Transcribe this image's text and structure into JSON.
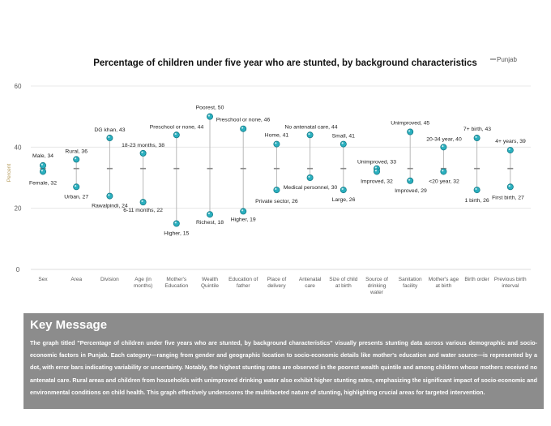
{
  "chart_data": {
    "type": "dot-range",
    "title": "Percentage of children under five year who are stunted, by background characteristics",
    "legend": {
      "label": "Punjab",
      "placement": "top-right"
    },
    "ylabel": "Percent",
    "ylim": [
      0,
      60
    ],
    "yticks": [
      0,
      20,
      40,
      60
    ],
    "grid": true,
    "categories": [
      {
        "name": "Sex",
        "label_lines": [
          "Sex"
        ],
        "punjab": 33,
        "high": {
          "label": "Male, 34",
          "value": 34
        },
        "low": {
          "label": "Female, 32",
          "value": 32
        }
      },
      {
        "name": "Area",
        "label_lines": [
          "Area"
        ],
        "punjab": 33,
        "high": {
          "label": "Rural, 36",
          "value": 36
        },
        "low": {
          "label": "Urban, 27",
          "value": 27
        }
      },
      {
        "name": "Division",
        "label_lines": [
          "Division"
        ],
        "punjab": 33,
        "high": {
          "label": "DG khan, 43",
          "value": 43
        },
        "low": {
          "label": "Rawalpindi, 24",
          "value": 24
        }
      },
      {
        "name": "Age (in months)",
        "label_lines": [
          "Age (in",
          "months)"
        ],
        "punjab": 33,
        "high": {
          "label": "18-23 months, 38",
          "value": 38
        },
        "low": {
          "label": "6-11 months, 22",
          "value": 22
        }
      },
      {
        "name": "Mother's Education",
        "label_lines": [
          "Mother's",
          "Education"
        ],
        "punjab": 33,
        "high": {
          "label": "Preschool or none, 44",
          "value": 44
        },
        "low": {
          "label": "Higher, 15",
          "value": 15
        }
      },
      {
        "name": "Wealth Quintile",
        "label_lines": [
          "Wealth",
          "Quintile"
        ],
        "punjab": 33,
        "high": {
          "label": "Poorest, 50",
          "value": 50
        },
        "low": {
          "label": "Richest, 18",
          "value": 18
        }
      },
      {
        "name": "Education of father",
        "label_lines": [
          "Education of",
          "father"
        ],
        "punjab": 33,
        "high": {
          "label": "Preschool or none, 46",
          "value": 46
        },
        "low": {
          "label": "Higher, 19",
          "value": 19
        }
      },
      {
        "name": "Place of delivery",
        "label_lines": [
          "Place of",
          "delivery"
        ],
        "punjab": 33,
        "high": {
          "label": "Home, 41",
          "value": 41
        },
        "low": {
          "label": "Private sector, 26",
          "value": 26
        }
      },
      {
        "name": "Antenatal care",
        "label_lines": [
          "Antenatal",
          "care"
        ],
        "punjab": 33,
        "high": {
          "label": "No antenatal care, 44",
          "value": 44
        },
        "low": {
          "label": "Medical personnel, 30",
          "value": 30
        }
      },
      {
        "name": "Size of child at birth",
        "label_lines": [
          "Size of child",
          "at birth"
        ],
        "punjab": 33,
        "high": {
          "label": "Small, 41",
          "value": 41
        },
        "low": {
          "label": "Large, 26",
          "value": 26
        }
      },
      {
        "name": "Source of drinking water",
        "label_lines": [
          "Source of",
          "drinking",
          "water"
        ],
        "punjab": 33,
        "high": {
          "label": "Unimproved, 33",
          "value": 33
        },
        "low": {
          "label": "Improved, 32",
          "value": 32
        }
      },
      {
        "name": "Sanitation facility",
        "label_lines": [
          "Sanitation",
          "facility"
        ],
        "punjab": 33,
        "high": {
          "label": "Unimproved, 45",
          "value": 45
        },
        "low": {
          "label": "Improved, 29",
          "value": 29
        }
      },
      {
        "name": "Mother's age at birth",
        "label_lines": [
          "Mother's age",
          "at birth"
        ],
        "punjab": 33,
        "high": {
          "label": "20-34 year, 40",
          "value": 40
        },
        "low": {
          "label": "<20 year, 32",
          "value": 32
        }
      },
      {
        "name": "Birth order",
        "label_lines": [
          "Birth order"
        ],
        "punjab": 33,
        "high": {
          "label": "7+ birth, 43",
          "value": 43
        },
        "low": {
          "label": "1 birth, 26",
          "value": 26
        }
      },
      {
        "name": "Previous birth interval",
        "label_lines": [
          "Previous birth",
          "interval"
        ],
        "punjab": 33,
        "high": {
          "label": "4+ years, 39",
          "value": 39
        },
        "low": {
          "label": "First birth, 27",
          "value": 27
        }
      }
    ],
    "colors": {
      "dot": "#2bb0bf",
      "dot_edge": "#137a87",
      "range_line": "#b9b9b9",
      "grid": "#e3e3e3",
      "axis_text": "#595959",
      "ylabel": "#b59a5a",
      "punjab_marker": "#8a8a8a"
    }
  },
  "key_message": {
    "title": "Key Message",
    "body": "The graph titled \"Percentage of children under five years who are stunted, by background characteristics\" visually presents stunting data across various demographic and socio-economic factors in Punjab. Each category—ranging from gender and geographic location to socio-economic details like mother's education and water source—is represented by a dot, with error bars indicating variability or uncertainty. Notably, the highest stunting rates are observed in the poorest wealth quintile and among children whose mothers received no antenatal care. Rural areas and children from households with unimproved drinking water also exhibit higher stunting rates, emphasizing the significant impact of socio-economic and environmental conditions on child health. This graph effectively underscores the multifaceted nature of stunting, highlighting crucial areas for targeted intervention."
  }
}
